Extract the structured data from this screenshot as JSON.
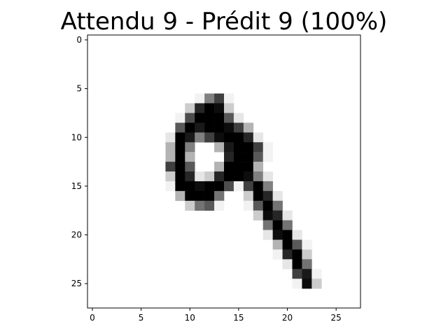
{
  "chart_data": {
    "type": "heatmap",
    "title": "Attendu 9 - Prédit 9 (100%)",
    "colormap": "gray_r",
    "grid": false,
    "xlim": [
      -0.5,
      27.5
    ],
    "ylim": [
      27.5,
      -0.5
    ],
    "x_ticks": [
      0,
      5,
      10,
      15,
      20,
      25
    ],
    "y_ticks": [
      0,
      5,
      10,
      15,
      20,
      25
    ],
    "rows": 28,
    "cols": 28,
    "pixels": [
      {
        "r": 6,
        "c": 11,
        "v": 0.05
      },
      {
        "r": 6,
        "c": 12,
        "v": 0.5
      },
      {
        "r": 6,
        "c": 13,
        "v": 0.75
      },
      {
        "r": 6,
        "c": 14,
        "v": 0.05
      },
      {
        "r": 7,
        "c": 10,
        "v": 0.2
      },
      {
        "r": 7,
        "c": 11,
        "v": 0.85
      },
      {
        "r": 7,
        "c": 12,
        "v": 1.0
      },
      {
        "r": 7,
        "c": 13,
        "v": 0.95
      },
      {
        "r": 7,
        "c": 14,
        "v": 0.2
      },
      {
        "r": 8,
        "c": 9,
        "v": 0.05
      },
      {
        "r": 8,
        "c": 10,
        "v": 0.7
      },
      {
        "r": 8,
        "c": 11,
        "v": 1.0
      },
      {
        "r": 8,
        "c": 12,
        "v": 1.0
      },
      {
        "r": 8,
        "c": 13,
        "v": 1.0
      },
      {
        "r": 8,
        "c": 14,
        "v": 0.65
      },
      {
        "r": 8,
        "c": 15,
        "v": 0.1
      },
      {
        "r": 9,
        "c": 9,
        "v": 0.65
      },
      {
        "r": 9,
        "c": 10,
        "v": 1.0
      },
      {
        "r": 9,
        "c": 11,
        "v": 0.9
      },
      {
        "r": 9,
        "c": 12,
        "v": 1.0
      },
      {
        "r": 9,
        "c": 13,
        "v": 1.0
      },
      {
        "r": 9,
        "c": 14,
        "v": 0.95
      },
      {
        "r": 9,
        "c": 15,
        "v": 0.75
      },
      {
        "r": 9,
        "c": 16,
        "v": 0.3
      },
      {
        "r": 10,
        "c": 8,
        "v": 0.1
      },
      {
        "r": 10,
        "c": 9,
        "v": 1.0
      },
      {
        "r": 10,
        "c": 10,
        "v": 0.9
      },
      {
        "r": 10,
        "c": 11,
        "v": 0.5
      },
      {
        "r": 10,
        "c": 12,
        "v": 0.75
      },
      {
        "r": 10,
        "c": 13,
        "v": 0.95
      },
      {
        "r": 10,
        "c": 14,
        "v": 1.0
      },
      {
        "r": 10,
        "c": 15,
        "v": 1.0
      },
      {
        "r": 10,
        "c": 16,
        "v": 0.85
      },
      {
        "r": 10,
        "c": 17,
        "v": 0.1
      },
      {
        "r": 11,
        "c": 8,
        "v": 0.3
      },
      {
        "r": 11,
        "c": 9,
        "v": 1.0
      },
      {
        "r": 11,
        "c": 10,
        "v": 0.5
      },
      {
        "r": 11,
        "c": 13,
        "v": 0.3
      },
      {
        "r": 11,
        "c": 14,
        "v": 0.9
      },
      {
        "r": 11,
        "c": 15,
        "v": 1.0
      },
      {
        "r": 11,
        "c": 16,
        "v": 1.0
      },
      {
        "r": 11,
        "c": 17,
        "v": 0.75
      },
      {
        "r": 11,
        "c": 18,
        "v": 0.05
      },
      {
        "r": 12,
        "c": 8,
        "v": 0.3
      },
      {
        "r": 12,
        "c": 9,
        "v": 1.0
      },
      {
        "r": 12,
        "c": 10,
        "v": 0.3
      },
      {
        "r": 12,
        "c": 14,
        "v": 0.85
      },
      {
        "r": 12,
        "c": 15,
        "v": 1.0
      },
      {
        "r": 12,
        "c": 16,
        "v": 1.0
      },
      {
        "r": 12,
        "c": 17,
        "v": 0.65
      },
      {
        "r": 12,
        "c": 18,
        "v": 0.05
      },
      {
        "r": 13,
        "c": 8,
        "v": 0.75
      },
      {
        "r": 13,
        "c": 9,
        "v": 1.0
      },
      {
        "r": 13,
        "c": 10,
        "v": 0.65
      },
      {
        "r": 13,
        "c": 13,
        "v": 0.3
      },
      {
        "r": 13,
        "c": 14,
        "v": 1.0
      },
      {
        "r": 13,
        "c": 15,
        "v": 1.0
      },
      {
        "r": 13,
        "c": 16,
        "v": 1.0
      },
      {
        "r": 13,
        "c": 17,
        "v": 0.3
      },
      {
        "r": 14,
        "c": 8,
        "v": 0.2
      },
      {
        "r": 14,
        "c": 9,
        "v": 1.0
      },
      {
        "r": 14,
        "c": 10,
        "v": 0.85
      },
      {
        "r": 14,
        "c": 11,
        "v": 0.1
      },
      {
        "r": 14,
        "c": 12,
        "v": 0.2
      },
      {
        "r": 14,
        "c": 13,
        "v": 0.85
      },
      {
        "r": 14,
        "c": 14,
        "v": 1.0
      },
      {
        "r": 14,
        "c": 15,
        "v": 1.0
      },
      {
        "r": 14,
        "c": 16,
        "v": 0.95
      },
      {
        "r": 14,
        "c": 17,
        "v": 0.5
      },
      {
        "r": 14,
        "c": 18,
        "v": 0.1
      },
      {
        "r": 15,
        "c": 8,
        "v": 0.05
      },
      {
        "r": 15,
        "c": 9,
        "v": 1.0
      },
      {
        "r": 15,
        "c": 10,
        "v": 1.0
      },
      {
        "r": 15,
        "c": 11,
        "v": 0.95
      },
      {
        "r": 15,
        "c": 12,
        "v": 1.0
      },
      {
        "r": 15,
        "c": 13,
        "v": 1.0
      },
      {
        "r": 15,
        "c": 14,
        "v": 0.7
      },
      {
        "r": 15,
        "c": 15,
        "v": 0.05
      },
      {
        "r": 15,
        "c": 16,
        "v": 0.75
      },
      {
        "r": 15,
        "c": 17,
        "v": 1.0
      },
      {
        "r": 15,
        "c": 18,
        "v": 0.5
      },
      {
        "r": 16,
        "c": 9,
        "v": 0.3
      },
      {
        "r": 16,
        "c": 10,
        "v": 1.0
      },
      {
        "r": 16,
        "c": 11,
        "v": 1.0
      },
      {
        "r": 16,
        "c": 12,
        "v": 1.0
      },
      {
        "r": 16,
        "c": 13,
        "v": 0.55
      },
      {
        "r": 16,
        "c": 16,
        "v": 0.2
      },
      {
        "r": 16,
        "c": 17,
        "v": 1.0
      },
      {
        "r": 16,
        "c": 18,
        "v": 0.85
      },
      {
        "r": 16,
        "c": 19,
        "v": 0.1
      },
      {
        "r": 17,
        "c": 10,
        "v": 0.2
      },
      {
        "r": 17,
        "c": 11,
        "v": 0.55
      },
      {
        "r": 17,
        "c": 12,
        "v": 0.65
      },
      {
        "r": 17,
        "c": 13,
        "v": 0.05
      },
      {
        "r": 17,
        "c": 16,
        "v": 0.05
      },
      {
        "r": 17,
        "c": 17,
        "v": 0.65
      },
      {
        "r": 17,
        "c": 18,
        "v": 1.0
      },
      {
        "r": 17,
        "c": 19,
        "v": 0.55
      },
      {
        "r": 18,
        "c": 17,
        "v": 0.2
      },
      {
        "r": 18,
        "c": 18,
        "v": 0.95
      },
      {
        "r": 18,
        "c": 19,
        "v": 0.85
      },
      {
        "r": 18,
        "c": 20,
        "v": 0.1
      },
      {
        "r": 19,
        "c": 18,
        "v": 0.55
      },
      {
        "r": 19,
        "c": 19,
        "v": 1.0
      },
      {
        "r": 19,
        "c": 20,
        "v": 0.55
      },
      {
        "r": 20,
        "c": 18,
        "v": 0.1
      },
      {
        "r": 20,
        "c": 19,
        "v": 0.95
      },
      {
        "r": 20,
        "c": 20,
        "v": 1.0
      },
      {
        "r": 20,
        "c": 21,
        "v": 0.1
      },
      {
        "r": 21,
        "c": 19,
        "v": 0.3
      },
      {
        "r": 21,
        "c": 20,
        "v": 1.0
      },
      {
        "r": 21,
        "c": 21,
        "v": 0.65
      },
      {
        "r": 21,
        "c": 22,
        "v": 0.05
      },
      {
        "r": 22,
        "c": 19,
        "v": 0.05
      },
      {
        "r": 22,
        "c": 20,
        "v": 0.85
      },
      {
        "r": 22,
        "c": 21,
        "v": 1.0
      },
      {
        "r": 22,
        "c": 22,
        "v": 0.2
      },
      {
        "r": 23,
        "c": 20,
        "v": 0.1
      },
      {
        "r": 23,
        "c": 21,
        "v": 1.0
      },
      {
        "r": 23,
        "c": 22,
        "v": 0.55
      },
      {
        "r": 24,
        "c": 21,
        "v": 0.75
      },
      {
        "r": 24,
        "c": 22,
        "v": 0.9
      },
      {
        "r": 24,
        "c": 23,
        "v": 0.05
      },
      {
        "r": 25,
        "c": 21,
        "v": 0.05
      },
      {
        "r": 25,
        "c": 22,
        "v": 0.95
      },
      {
        "r": 25,
        "c": 23,
        "v": 0.2
      }
    ]
  }
}
